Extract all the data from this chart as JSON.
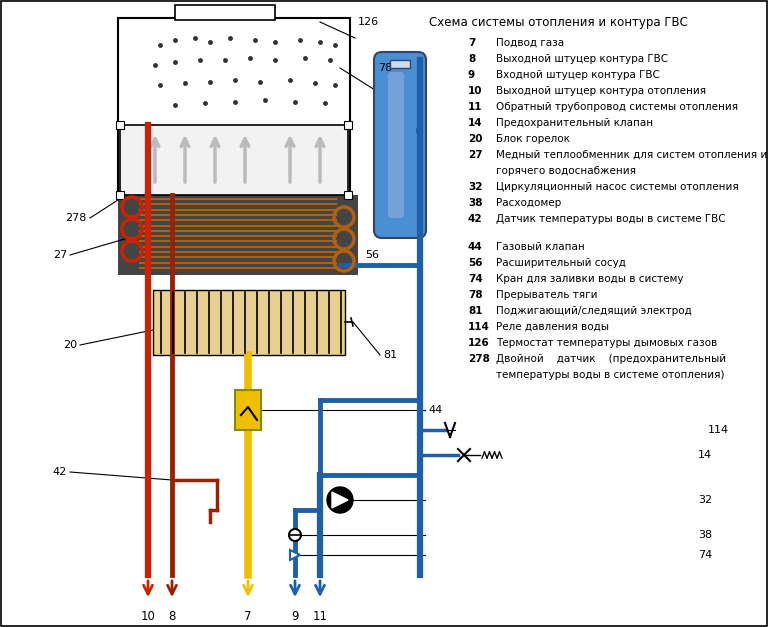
{
  "title": "Схема системы отопления и контура ГВС",
  "bg_color": "#ffffff",
  "legend_group1": [
    [
      "7",
      "Подвод газа"
    ],
    [
      "8",
      "Выходной штуцер контура ГВС"
    ],
    [
      "9",
      "Входной штуцер контура ГВС"
    ],
    [
      "10",
      "Выходной штуцер контура отопления"
    ],
    [
      "11",
      "Обратный трубопровод системы отопления"
    ],
    [
      "14",
      "Предохранительный клапан"
    ],
    [
      "20",
      "Блок горелок"
    ],
    [
      "27",
      "Медный теплообменник для систем отопления и"
    ],
    [
      "",
      "горячего водоснабжения"
    ],
    [
      "32",
      "Циркуляционный насос системы отопления"
    ],
    [
      "38",
      "Расходомер"
    ],
    [
      "42",
      "Датчик температуры воды в системе ГВС"
    ]
  ],
  "legend_group2": [
    [
      "44",
      "Газовый клапан"
    ],
    [
      "56",
      "Расширительный сосуд"
    ],
    [
      "74",
      "Кран для заливки воды в систему"
    ],
    [
      "78",
      "Прерыватель тяги"
    ],
    [
      "81",
      "Поджигающий/следящий электрод"
    ],
    [
      "114",
      "Реле давления воды"
    ],
    [
      "126",
      "Термостат температуры дымовых газов"
    ],
    [
      "278",
      "Двойной    датчик    (предохранительный"
    ],
    [
      "",
      "температуры воды в системе отопления)"
    ]
  ],
  "red": "#cc2200",
  "red_dark": "#992200",
  "blue": "#1e5fa8",
  "blue2": "#4a8fd4",
  "yellow": "#f0c000",
  "gray_arr": "#999999",
  "black": "#000000",
  "copper": "#b06010",
  "he_bg": "#444444",
  "burner_bg": "#e8d090"
}
